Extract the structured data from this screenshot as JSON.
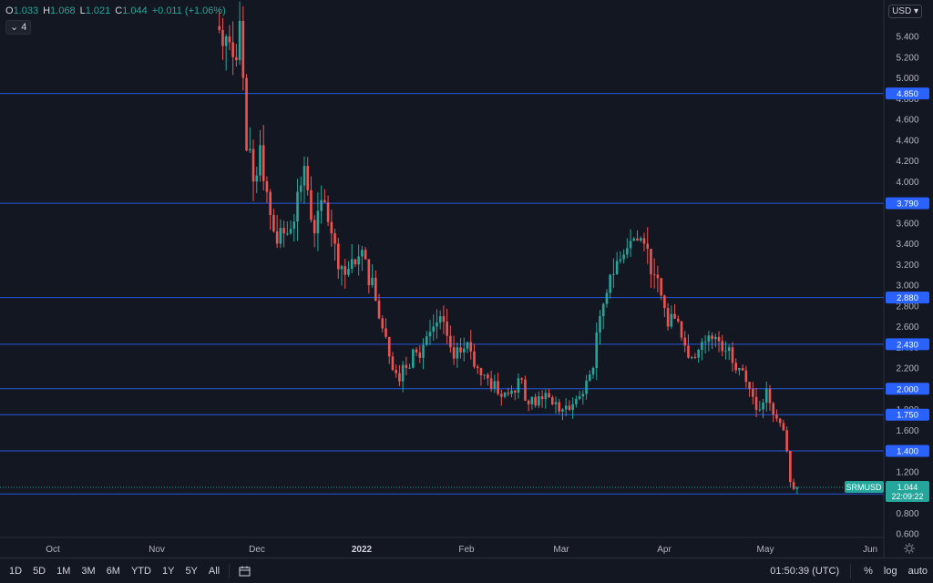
{
  "header": {
    "open_label": "O",
    "open": "1.033",
    "high_label": "H",
    "high": "1.068",
    "low_label": "L",
    "low": "1.021",
    "close_label": "C",
    "close": "1.044",
    "change": "+0.011 (+1.06%)",
    "indicator_count": "4",
    "currency": "USD"
  },
  "symbol_tag": {
    "symbol": "SRMUSD",
    "price": "1.044",
    "countdown": "22:09:22"
  },
  "price_axis_ticks": [
    "5.400",
    "5.200",
    "5.000",
    "4.800",
    "4.600",
    "4.400",
    "4.200",
    "4.000",
    "3.800",
    "3.600",
    "3.400",
    "3.200",
    "3.000",
    "2.800",
    "2.600",
    "2.400",
    "2.200",
    "2.000",
    "1.800",
    "1.600",
    "1.400",
    "1.200",
    "1.000",
    "0.800",
    "0.600"
  ],
  "time_axis_labels": [
    "Oct",
    "Nov",
    "Dec",
    "2022",
    "Feb",
    "Mar",
    "Apr",
    "May",
    "Jun"
  ],
  "bottom_bar": {
    "ranges": [
      "1D",
      "5D",
      "1M",
      "3M",
      "6M",
      "YTD",
      "1Y",
      "5Y",
      "All"
    ],
    "clock": "01:50:39 (UTC)",
    "percent": "%",
    "log": "log",
    "auto": "auto"
  },
  "colors": {
    "background": "#131722",
    "up": "#26a69a",
    "down": "#ef5350",
    "level_line": "#2962ff",
    "level_label_bg": "#2962ff",
    "symbol_tag_bg": "#26a69a"
  },
  "chart_data": {
    "type": "candlestick",
    "symbol": "SRMUSD",
    "ylim": [
      0.6,
      5.4
    ],
    "horizontal_levels": [
      {
        "value": 4.85,
        "label": "4.850"
      },
      {
        "value": 3.79,
        "label": "3.790"
      },
      {
        "value": 2.88,
        "label": "2.880"
      },
      {
        "value": 2.43,
        "label": "2.430"
      },
      {
        "value": 2.0,
        "label": "2.000"
      },
      {
        "value": 1.75,
        "label": "1.750"
      },
      {
        "value": 1.4,
        "label": "1.400"
      },
      {
        "value": 0.985,
        "label": "0.985"
      }
    ],
    "x_start": "2021-11-24",
    "close_path": [
      {
        "date": "2021-11-24",
        "close": 5.5
      },
      {
        "date": "2021-11-27",
        "close": 5.4
      },
      {
        "date": "2021-11-29",
        "close": 5.2
      },
      {
        "date": "2021-12-01",
        "close": 5.55
      },
      {
        "date": "2021-12-02",
        "close": 5.0
      },
      {
        "date": "2021-12-03",
        "close": 4.3
      },
      {
        "date": "2021-12-05",
        "close": 4.0
      },
      {
        "date": "2021-12-07",
        "close": 4.35
      },
      {
        "date": "2021-12-09",
        "close": 3.9
      },
      {
        "date": "2021-12-12",
        "close": 3.4
      },
      {
        "date": "2021-12-15",
        "close": 3.5
      },
      {
        "date": "2021-12-18",
        "close": 3.9
      },
      {
        "date": "2021-12-20",
        "close": 4.15
      },
      {
        "date": "2021-12-23",
        "close": 3.5
      },
      {
        "date": "2021-12-26",
        "close": 3.8
      },
      {
        "date": "2021-12-29",
        "close": 3.4
      },
      {
        "date": "2022-01-01",
        "close": 3.1
      },
      {
        "date": "2022-01-04",
        "close": 3.2
      },
      {
        "date": "2022-01-07",
        "close": 3.25
      },
      {
        "date": "2022-01-10",
        "close": 2.85
      },
      {
        "date": "2022-01-13",
        "close": 2.5
      },
      {
        "date": "2022-01-16",
        "close": 2.15
      },
      {
        "date": "2022-01-19",
        "close": 2.2
      },
      {
        "date": "2022-01-22",
        "close": 2.35
      },
      {
        "date": "2022-01-26",
        "close": 2.55
      },
      {
        "date": "2022-01-29",
        "close": 2.7
      },
      {
        "date": "2022-02-01",
        "close": 2.4
      },
      {
        "date": "2022-02-04",
        "close": 2.35
      },
      {
        "date": "2022-02-06",
        "close": 2.45
      },
      {
        "date": "2022-02-09",
        "close": 2.2
      },
      {
        "date": "2022-02-12",
        "close": 2.1
      },
      {
        "date": "2022-02-15",
        "close": 1.95
      },
      {
        "date": "2022-02-18",
        "close": 1.95
      },
      {
        "date": "2022-02-21",
        "close": 2.1
      },
      {
        "date": "2022-02-24",
        "close": 1.85
      },
      {
        "date": "2022-02-28",
        "close": 1.9
      },
      {
        "date": "2022-03-03",
        "close": 1.85
      },
      {
        "date": "2022-03-06",
        "close": 1.8
      },
      {
        "date": "2022-03-09",
        "close": 1.85
      },
      {
        "date": "2022-03-12",
        "close": 1.95
      },
      {
        "date": "2022-03-15",
        "close": 2.2
      },
      {
        "date": "2022-03-17",
        "close": 2.7
      },
      {
        "date": "2022-03-20",
        "close": 3.1
      },
      {
        "date": "2022-03-23",
        "close": 3.25
      },
      {
        "date": "2022-03-27",
        "close": 3.45
      },
      {
        "date": "2022-03-30",
        "close": 3.4
      },
      {
        "date": "2022-04-02",
        "close": 3.1
      },
      {
        "date": "2022-04-04",
        "close": 2.9
      },
      {
        "date": "2022-04-06",
        "close": 2.6
      },
      {
        "date": "2022-04-09",
        "close": 2.65
      },
      {
        "date": "2022-04-12",
        "close": 2.3
      },
      {
        "date": "2022-04-16",
        "close": 2.45
      },
      {
        "date": "2022-04-20",
        "close": 2.5
      },
      {
        "date": "2022-04-24",
        "close": 2.4
      },
      {
        "date": "2022-04-27",
        "close": 2.2
      },
      {
        "date": "2022-04-30",
        "close": 2.0
      },
      {
        "date": "2022-05-03",
        "close": 1.8
      },
      {
        "date": "2022-05-05",
        "close": 2.0
      },
      {
        "date": "2022-05-07",
        "close": 1.75
      },
      {
        "date": "2022-05-10",
        "close": 1.6
      },
      {
        "date": "2022-05-11",
        "close": 1.4
      },
      {
        "date": "2022-05-12",
        "close": 1.1
      },
      {
        "date": "2022-05-13",
        "close": 1.033
      },
      {
        "date": "2022-05-14",
        "close": 1.044
      }
    ],
    "last": {
      "open": 1.033,
      "high": 1.068,
      "low": 1.021,
      "close": 1.044
    }
  }
}
